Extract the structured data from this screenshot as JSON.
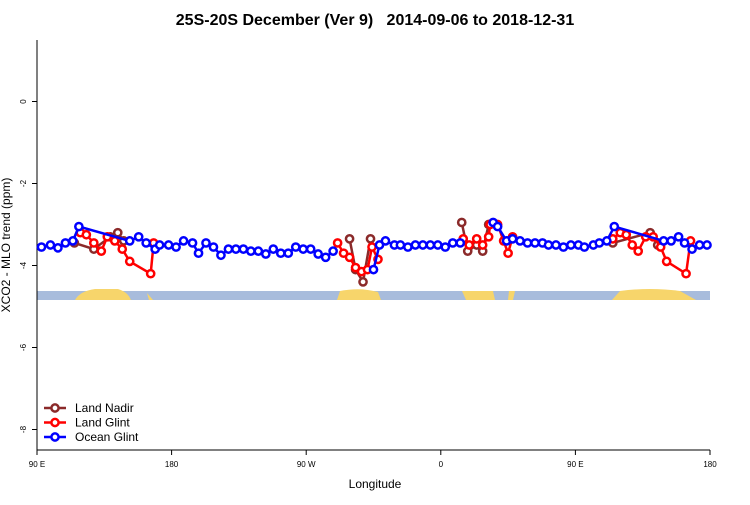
{
  "chart_data": {
    "type": "line",
    "title": "25S-20S December (Ver 9)   2014-09-06 to 2018-12-31",
    "x_label": "Longitude",
    "y_label": "XCO2 - MLO trend (ppm)",
    "xlim": [
      90,
      540
    ],
    "ylim": [
      -8.5,
      1.5
    ],
    "xticks": [
      {
        "value": 90,
        "label": "90 E"
      },
      {
        "value": 180,
        "label": "180"
      },
      {
        "value": 270,
        "label": "90 W"
      },
      {
        "value": 360,
        "label": "0"
      },
      {
        "value": 450,
        "label": "90 E"
      },
      {
        "value": 540,
        "label": "180"
      }
    ],
    "yticks": [
      -8,
      -6,
      -4,
      -2,
      0
    ],
    "legend": "bottom-left",
    "series": [
      {
        "name": "Land Nadir",
        "color": "#8b2a2a",
        "x": [
          115,
          128,
          139,
          144,
          148,
          200,
          299,
          303,
          308,
          313,
          340,
          374,
          378,
          384,
          388,
          392,
          430,
          475,
          500,
          505
        ],
        "values": [
          -3.45,
          -3.6,
          -3.3,
          -3.2,
          -3.4,
          null,
          -3.35,
          -4.1,
          -4.4,
          -3.35,
          null,
          -2.95,
          -3.65,
          -3.5,
          -3.65,
          -3.0,
          null,
          -3.45,
          -3.2,
          -3.5
        ]
      },
      {
        "name": "Land Glint",
        "color": "#ff0000",
        "x": [
          119,
          123,
          128,
          133,
          137,
          142,
          147,
          152,
          166,
          168,
          230,
          291,
          295,
          299,
          303,
          307,
          311,
          314,
          318,
          340,
          375,
          379,
          384,
          388,
          392,
          393,
          398,
          402,
          405,
          408,
          440,
          475,
          480,
          484,
          488,
          492,
          497,
          502,
          507,
          511,
          524,
          527
        ],
        "values": [
          -3.2,
          -3.25,
          -3.45,
          -3.65,
          -3.3,
          -3.4,
          -3.6,
          -3.9,
          -4.2,
          -3.45,
          null,
          -3.45,
          -3.7,
          -3.8,
          -4.05,
          -4.15,
          -4.1,
          -3.55,
          -3.85,
          null,
          -3.35,
          -3.5,
          -3.35,
          -3.5,
          -3.3,
          -3.0,
          -3.0,
          -3.4,
          -3.7,
          -3.3,
          null,
          -3.35,
          -3.2,
          -3.25,
          -3.5,
          -3.65,
          -3.3,
          -3.3,
          -3.55,
          -3.9,
          -4.2,
          -3.4
        ]
      },
      {
        "name": "Ocean Glint",
        "color": "#0000ff",
        "x": [
          93,
          99,
          104,
          109,
          114,
          118,
          152,
          158,
          163,
          169,
          172,
          178,
          183,
          188,
          194,
          198,
          203,
          208,
          213,
          218,
          223,
          228,
          233,
          238,
          243,
          248,
          253,
          258,
          263,
          268,
          273,
          278,
          283,
          288,
          300,
          315,
          319,
          323,
          329,
          333,
          338,
          343,
          348,
          353,
          358,
          363,
          368,
          373,
          385,
          395,
          398,
          404,
          408,
          413,
          418,
          423,
          428,
          432,
          437,
          442,
          447,
          452,
          456,
          462,
          466,
          471,
          476,
          509,
          514,
          519,
          523,
          528,
          533,
          538
        ],
        "values": [
          -3.55,
          -3.5,
          -3.57,
          -3.45,
          -3.4,
          -3.05,
          -3.4,
          -3.3,
          -3.45,
          -3.6,
          -3.5,
          -3.5,
          -3.55,
          -3.4,
          -3.45,
          -3.7,
          -3.45,
          -3.55,
          -3.75,
          -3.6,
          -3.6,
          -3.6,
          -3.65,
          -3.65,
          -3.72,
          -3.6,
          -3.7,
          -3.7,
          -3.55,
          -3.6,
          -3.6,
          -3.72,
          -3.8,
          -3.65,
          null,
          -4.1,
          -3.5,
          -3.4,
          -3.5,
          -3.5,
          -3.55,
          -3.5,
          -3.5,
          -3.5,
          -3.5,
          -3.55,
          -3.45,
          -3.45,
          null,
          -2.95,
          -3.05,
          -3.4,
          -3.35,
          -3.4,
          -3.45,
          -3.45,
          -3.45,
          -3.5,
          -3.5,
          -3.55,
          -3.5,
          -3.5,
          -3.55,
          -3.5,
          -3.45,
          -3.4,
          -3.05,
          -3.4,
          -3.4,
          -3.3,
          -3.45,
          -3.6,
          -3.5,
          -3.5
        ]
      }
    ]
  }
}
